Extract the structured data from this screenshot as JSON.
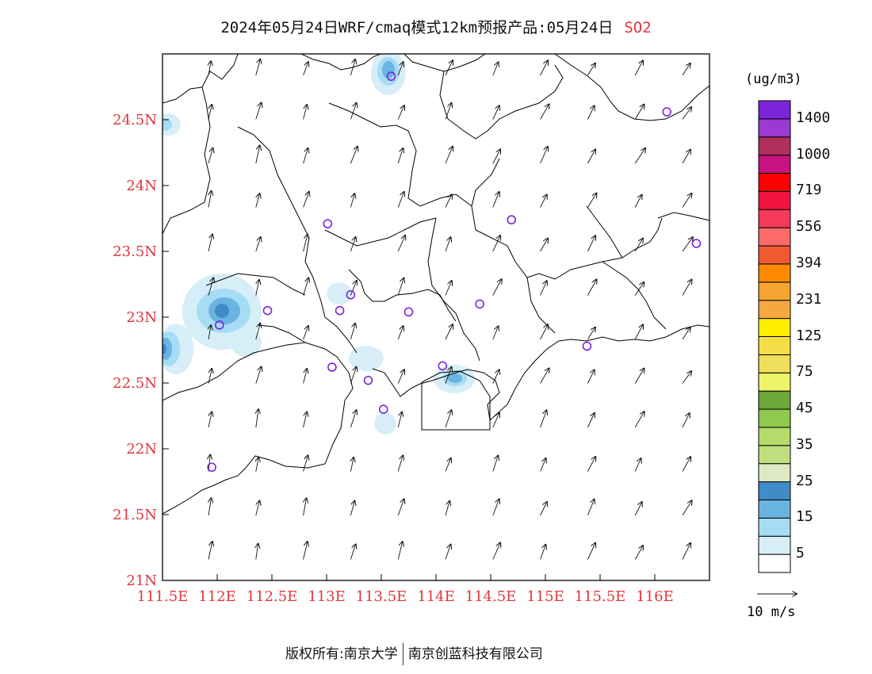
{
  "title": {
    "main": "2024年05月24日WRF/cmaq模式12km预报产品:05月24日",
    "pollutant": "SO2"
  },
  "axes": {
    "lat_labels": [
      "24.5N",
      "24N",
      "23.5N",
      "23N",
      "22.5N",
      "22N",
      "21.5N",
      "21N"
    ],
    "lon_labels": [
      "111.5E",
      "112E",
      "112.5E",
      "113E",
      "113.5E",
      "114E",
      "114.5E",
      "115E",
      "115.5E",
      "116E"
    ]
  },
  "colorbar": {
    "unit": "(ug/m3)",
    "colors": [
      "#ffffff",
      "#d7eef8",
      "#a6dcf4",
      "#6ab4e2",
      "#3f8cc8",
      "#dde9c2",
      "#bfdf7f",
      "#b6dc6a",
      "#90c94e",
      "#6aa83a",
      "#eef36a",
      "#eee05a",
      "#f5dd45",
      "#ffee00",
      "#f4a840",
      "#f6a530",
      "#ff8a00",
      "#ef5a30",
      "#ff6b6b",
      "#f43a58",
      "#f0133e",
      "#ff0000",
      "#c81380",
      "#b0305a",
      "#9a3ad1",
      "#7d24d9"
    ],
    "labels": [
      {
        "text": "5",
        "boundary": 1
      },
      {
        "text": "15",
        "boundary": 3
      },
      {
        "text": "25",
        "boundary": 5
      },
      {
        "text": "35",
        "boundary": 7
      },
      {
        "text": "45",
        "boundary": 9
      },
      {
        "text": "75",
        "boundary": 11
      },
      {
        "text": "125",
        "boundary": 13
      },
      {
        "text": "231",
        "boundary": 15
      },
      {
        "text": "394",
        "boundary": 17
      },
      {
        "text": "556",
        "boundary": 19
      },
      {
        "text": "719",
        "boundary": 21
      },
      {
        "text": "1000",
        "boundary": 23
      },
      {
        "text": "1400",
        "boundary": 25
      }
    ]
  },
  "wind_reference": {
    "label": "10 m/s"
  },
  "stations": [
    {
      "lon": 113.59,
      "lat": 24.83
    },
    {
      "lon": 116.11,
      "lat": 24.56
    },
    {
      "lon": 113.01,
      "lat": 23.71
    },
    {
      "lon": 114.69,
      "lat": 23.74
    },
    {
      "lon": 116.38,
      "lat": 23.56
    },
    {
      "lon": 112.46,
      "lat": 23.05
    },
    {
      "lon": 113.22,
      "lat": 23.17
    },
    {
      "lon": 113.12,
      "lat": 23.05
    },
    {
      "lon": 113.75,
      "lat": 23.04
    },
    {
      "lon": 114.4,
      "lat": 23.1
    },
    {
      "lon": 112.02,
      "lat": 22.94
    },
    {
      "lon": 115.38,
      "lat": 22.78
    },
    {
      "lon": 113.05,
      "lat": 22.62
    },
    {
      "lon": 114.06,
      "lat": 22.63
    },
    {
      "lon": 113.38,
      "lat": 22.52
    },
    {
      "lon": 113.52,
      "lat": 22.3
    },
    {
      "lon": 111.95,
      "lat": 21.86
    }
  ],
  "copyright": {
    "left": "版权所有:南京大学",
    "right": "南京创蓝科技有限公司"
  }
}
